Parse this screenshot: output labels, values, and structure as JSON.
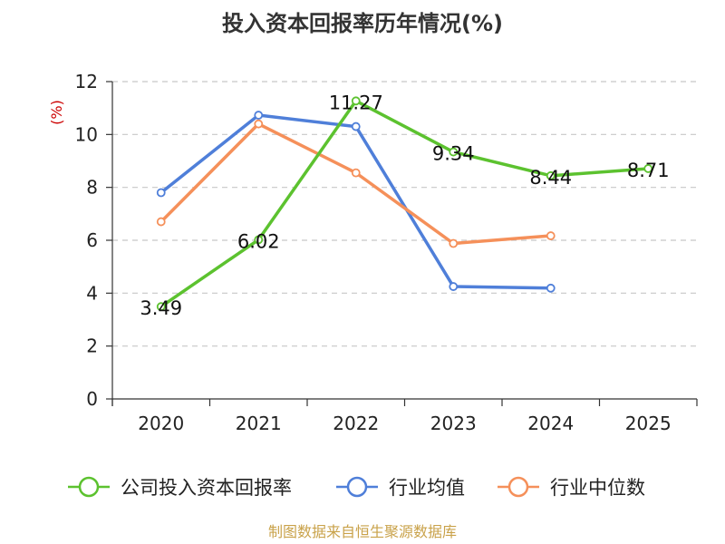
{
  "chart_data": {
    "type": "line",
    "title": "投入资本回报率历年情况(%)",
    "ylabel": "(%)",
    "xlabel": "",
    "categories": [
      "2020",
      "2021",
      "2022",
      "2023",
      "2024",
      "2025"
    ],
    "ylim": [
      0,
      12
    ],
    "yticks": [
      "0",
      "2",
      "4",
      "6",
      "8",
      "10",
      "12"
    ],
    "grid": true,
    "legend_position": "bottom",
    "series": [
      {
        "name": "公司投入资本回报率",
        "color": "#5cc22f",
        "values": [
          3.49,
          6.02,
          11.27,
          9.34,
          8.44,
          8.71
        ],
        "labels": [
          "3.49",
          "6.02",
          "11.27",
          "9.34",
          "8.44",
          "8.71"
        ]
      },
      {
        "name": "行业均值",
        "color": "#4f7fd9",
        "values": [
          7.8,
          10.73,
          10.3,
          4.25,
          4.19,
          null
        ]
      },
      {
        "name": "行业中位数",
        "color": "#f5905a",
        "values": [
          6.7,
          10.4,
          8.55,
          5.88,
          6.17,
          null
        ]
      }
    ],
    "source": "制图数据来自恒生聚源数据库",
    "source_color": "#c9a24a",
    "ylabel_color": "#cc0000"
  }
}
